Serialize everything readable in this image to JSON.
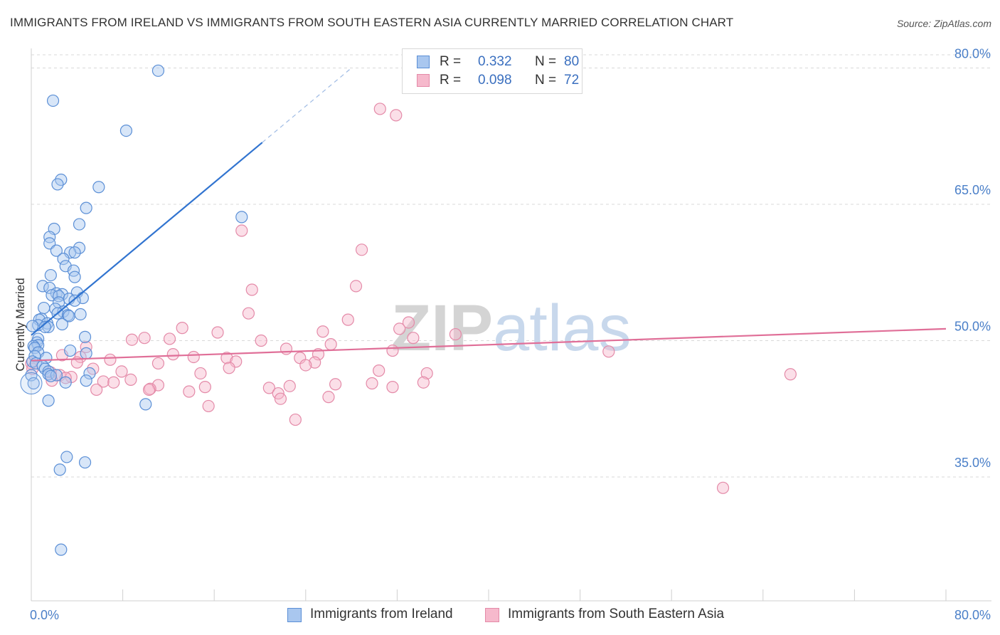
{
  "title": "IMMIGRANTS FROM IRELAND VS IMMIGRANTS FROM SOUTH EASTERN ASIA CURRENTLY MARRIED CORRELATION CHART",
  "source": "Source: ZipAtlas.com",
  "watermark": "ZIPatlas",
  "colors": {
    "blue_fill": "#a9c7ef",
    "blue_stroke": "#5b8fd6",
    "blue_line": "#3174d0",
    "pink_fill": "#f6b9cc",
    "pink_stroke": "#e48aa8",
    "pink_line": "#e06f98",
    "grid": "#d9d9d9",
    "tick_text": "#4a7fc8"
  },
  "legend": {
    "ireland": {
      "r_label": "R =",
      "r_value": "0.332",
      "n_label": "N =",
      "n_value": "80"
    },
    "sea": {
      "r_label": "R =",
      "r_value": "0.098",
      "n_label": "N =",
      "n_value": "72"
    }
  },
  "bottom_legend": {
    "ireland": "Immigrants from Ireland",
    "sea": "Immigrants from South Eastern Asia"
  },
  "chart_data": {
    "type": "scatter",
    "title": "IMMIGRANTS FROM IRELAND VS IMMIGRANTS FROM SOUTH EASTERN ASIA CURRENTLY MARRIED CORRELATION CHART",
    "xlabel": "",
    "ylabel": "Currently Married",
    "xlim": [
      0,
      80
    ],
    "ylim": [
      20,
      82
    ],
    "x_tick_labels": [
      "0.0%",
      "80.0%"
    ],
    "y_ticks": [
      35,
      50,
      65,
      80
    ],
    "y_tick_labels": [
      "35.0%",
      "50.0%",
      "65.0%",
      "80.0%"
    ],
    "grid": true,
    "legend_position": "top-center",
    "series": [
      {
        "name": "Immigrants from Ireland",
        "color": "blue",
        "R": 0.332,
        "N": 80,
        "trend": {
          "x0": 0,
          "y0": 50.6,
          "x1": 20.2,
          "y1": 71.8,
          "dash_x1": 28.0,
          "dash_y1": 80.0
        },
        "points": [
          [
            11.1,
            79.7
          ],
          [
            1.9,
            76.4
          ],
          [
            8.3,
            73.1
          ],
          [
            2.6,
            67.7
          ],
          [
            2.3,
            67.2
          ],
          [
            5.9,
            66.9
          ],
          [
            4.8,
            64.6
          ],
          [
            18.4,
            63.6
          ],
          [
            4.2,
            62.8
          ],
          [
            2.0,
            62.3
          ],
          [
            1.6,
            61.4
          ],
          [
            1.6,
            60.7
          ],
          [
            4.2,
            60.2
          ],
          [
            3.4,
            59.7
          ],
          [
            2.2,
            59.9
          ],
          [
            3.8,
            59.7
          ],
          [
            2.8,
            59.0
          ],
          [
            3.0,
            58.2
          ],
          [
            3.7,
            57.7
          ],
          [
            1.7,
            57.2
          ],
          [
            3.8,
            57.0
          ],
          [
            1.0,
            56.0
          ],
          [
            1.6,
            55.8
          ],
          [
            4.0,
            55.3
          ],
          [
            2.2,
            55.2
          ],
          [
            2.7,
            55.1
          ],
          [
            1.8,
            55.0
          ],
          [
            2.4,
            54.9
          ],
          [
            4.5,
            54.7
          ],
          [
            3.3,
            54.6
          ],
          [
            3.8,
            54.4
          ],
          [
            2.4,
            54.2
          ],
          [
            1.1,
            53.6
          ],
          [
            2.1,
            53.5
          ],
          [
            2.8,
            53.2
          ],
          [
            2.3,
            53.0
          ],
          [
            4.3,
            52.9
          ],
          [
            3.2,
            52.8
          ],
          [
            3.3,
            52.7
          ],
          [
            0.9,
            52.4
          ],
          [
            0.7,
            52.3
          ],
          [
            1.4,
            51.9
          ],
          [
            2.7,
            51.8
          ],
          [
            0.6,
            51.7
          ],
          [
            1.5,
            51.5
          ],
          [
            1.2,
            51.5
          ],
          [
            0.1,
            51.6
          ],
          [
            4.7,
            50.4
          ],
          [
            0.6,
            50.2
          ],
          [
            0.5,
            49.8
          ],
          [
            0.6,
            49.5
          ],
          [
            0.2,
            49.4
          ],
          [
            0.3,
            49.2
          ],
          [
            3.4,
            48.9
          ],
          [
            0.6,
            48.7
          ],
          [
            4.8,
            48.6
          ],
          [
            0.3,
            48.3
          ],
          [
            1.3,
            48.1
          ],
          [
            0.1,
            47.7
          ],
          [
            0.4,
            47.5
          ],
          [
            1.0,
            47.2
          ],
          [
            1.2,
            46.9
          ],
          [
            1.5,
            46.6
          ],
          [
            1.5,
            46.3
          ],
          [
            5.1,
            46.4
          ],
          [
            2.2,
            46.2
          ],
          [
            1.7,
            46.1
          ],
          [
            4.8,
            45.6
          ],
          [
            3.0,
            45.4
          ],
          [
            1.5,
            43.4
          ],
          [
            10.0,
            43.0
          ],
          [
            3.1,
            37.2
          ],
          [
            4.7,
            36.6
          ],
          [
            2.5,
            35.8
          ],
          [
            2.6,
            27.0
          ],
          [
            0.0,
            46.2
          ],
          [
            0.2,
            45.3
          ]
        ]
      },
      {
        "name": "Immigrants from South Eastern Asia",
        "color": "pink",
        "R": 0.098,
        "N": 72,
        "trend": {
          "x0": 0,
          "y0": 47.8,
          "x1": 80,
          "y1": 51.3
        },
        "points": [
          [
            30.5,
            75.5
          ],
          [
            31.9,
            74.8
          ],
          [
            18.4,
            62.1
          ],
          [
            28.9,
            60.0
          ],
          [
            19.3,
            55.6
          ],
          [
            28.4,
            56.0
          ],
          [
            19.0,
            53.0
          ],
          [
            33.0,
            52.0
          ],
          [
            27.7,
            52.3
          ],
          [
            13.2,
            51.4
          ],
          [
            32.2,
            51.3
          ],
          [
            25.5,
            51.0
          ],
          [
            16.3,
            50.9
          ],
          [
            37.1,
            50.7
          ],
          [
            9.9,
            50.3
          ],
          [
            12.1,
            50.2
          ],
          [
            8.8,
            50.1
          ],
          [
            20.1,
            50.0
          ],
          [
            33.4,
            50.3
          ],
          [
            26.2,
            49.6
          ],
          [
            4.8,
            49.3
          ],
          [
            31.6,
            48.9
          ],
          [
            22.3,
            49.1
          ],
          [
            50.5,
            48.8
          ],
          [
            25.1,
            48.5
          ],
          [
            12.4,
            48.5
          ],
          [
            14.2,
            48.2
          ],
          [
            17.1,
            48.1
          ],
          [
            23.5,
            48.1
          ],
          [
            4.3,
            48.2
          ],
          [
            2.7,
            48.4
          ],
          [
            6.9,
            47.9
          ],
          [
            4.0,
            47.6
          ],
          [
            17.9,
            47.7
          ],
          [
            24.8,
            47.6
          ],
          [
            11.1,
            47.5
          ],
          [
            24.0,
            47.3
          ],
          [
            17.3,
            47.0
          ],
          [
            5.4,
            46.9
          ],
          [
            7.9,
            46.6
          ],
          [
            14.8,
            46.4
          ],
          [
            30.4,
            46.7
          ],
          [
            1.7,
            46.5
          ],
          [
            34.6,
            46.4
          ],
          [
            66.4,
            46.3
          ],
          [
            2.5,
            46.2
          ],
          [
            3.5,
            46.0
          ],
          [
            3.0,
            45.9
          ],
          [
            1.8,
            45.6
          ],
          [
            6.3,
            45.5
          ],
          [
            8.7,
            45.7
          ],
          [
            7.2,
            45.4
          ],
          [
            29.8,
            45.3
          ],
          [
            34.3,
            45.4
          ],
          [
            22.6,
            45.0
          ],
          [
            26.6,
            45.2
          ],
          [
            31.6,
            44.9
          ],
          [
            11.1,
            45.1
          ],
          [
            15.2,
            44.9
          ],
          [
            10.4,
            44.7
          ],
          [
            10.3,
            44.6
          ],
          [
            5.7,
            44.6
          ],
          [
            20.8,
            44.8
          ],
          [
            13.8,
            44.4
          ],
          [
            21.6,
            44.2
          ],
          [
            21.8,
            43.6
          ],
          [
            26.0,
            43.8
          ],
          [
            15.5,
            42.8
          ],
          [
            23.1,
            41.3
          ],
          [
            60.5,
            33.8
          ],
          [
            0.0,
            47.5
          ],
          [
            0.1,
            46.9
          ]
        ]
      }
    ]
  }
}
